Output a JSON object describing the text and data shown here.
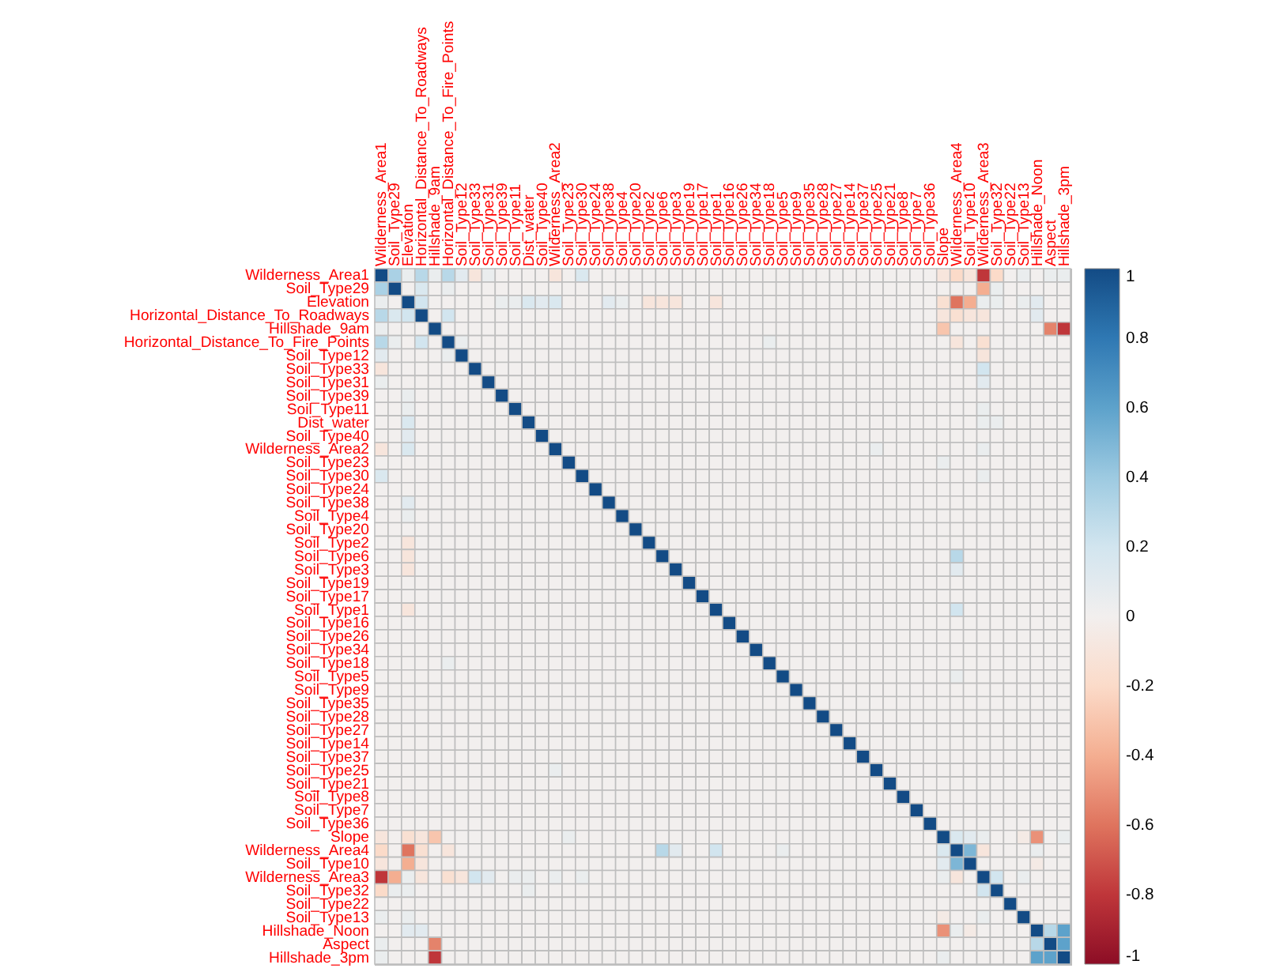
{
  "chart_data": {
    "type": "heatmap",
    "categories": [
      "Wilderness_Area1",
      "Soil_Type29",
      "Elevation",
      "Horizontal_Distance_To_Roadways",
      "Hillshade_9am",
      "Horizontal_Distance_To_Fire_Points",
      "Soil_Type12",
      "Soil_Type33",
      "Soil_Type31",
      "Soil_Type39",
      "Soil_Type11",
      "Dist_water",
      "Soil_Type40",
      "Wilderness_Area2",
      "Soil_Type23",
      "Soil_Type30",
      "Soil_Type24",
      "Soil_Type38",
      "Soil_Type4",
      "Soil_Type20",
      "Soil_Type2",
      "Soil_Type6",
      "Soil_Type3",
      "Soil_Type19",
      "Soil_Type17",
      "Soil_Type1",
      "Soil_Type16",
      "Soil_Type26",
      "Soil_Type34",
      "Soil_Type18",
      "Soil_Type5",
      "Soil_Type9",
      "Soil_Type35",
      "Soil_Type28",
      "Soil_Type27",
      "Soil_Type14",
      "Soil_Type37",
      "Soil_Type25",
      "Soil_Type21",
      "Soil_Type8",
      "Soil_Type7",
      "Soil_Type36",
      "Slope",
      "Wilderness_Area4",
      "Soil_Type10",
      "Wilderness_Area3",
      "Soil_Type32",
      "Soil_Type22",
      "Soil_Type13",
      "Hillshade_Noon",
      "Aspect",
      "Hillshade_3pm"
    ],
    "y_categories": [
      "Wilderness_Area1",
      "Soil_Type29",
      "Elevation",
      "Horizontal_Distance_To_Roadways",
      "Hillshade_9am",
      "Horizontal_Distance_To_Fire_Points",
      "Soil_Type12",
      "Soil_Type33",
      "Soil_Type31",
      "Soil_Type39",
      "Soil_Type11",
      "Dist_water",
      "Soil_Type40",
      "Wilderness_Area2",
      "Soil_Type23",
      "Soil_Type30",
      "Soil_Type24",
      "Soil_Type38",
      "Soil_Type4",
      "Soil_Type20",
      "Soil_Type2",
      "Soil_Type6",
      "Soil_Type3",
      "Soil_Type19",
      "Soil_Type17",
      "Soil_Type1",
      "Soil_Type16",
      "Soil_Type26",
      "Soil_Type34",
      "Soil_Type18",
      "Soil_Type5",
      "Soil_Type9",
      "Soil_Type35",
      "Soil_Type28",
      "Soil_Type27",
      "Soil_Type14",
      "Soil_Type37",
      "Soil_Type25",
      "Soil_Type21",
      "Soil_Type8",
      "Soil_Type7",
      "Soil_Type36",
      "Slope",
      "Wilderness_Area4",
      "Soil_Type10",
      "Wilderness_Area3",
      "Soil_Type32",
      "Soil_Type22",
      "Soil_Type13",
      "Hillshade_Noon",
      "Aspect",
      "Hillshade_3pm"
    ],
    "cells": [
      [
        1,
        0.35,
        0.05,
        0.3,
        0.05,
        0.3,
        0.1,
        -0.1,
        0.05,
        0,
        0,
        0,
        0,
        -0.1,
        0,
        0.15,
        0,
        0,
        0,
        0,
        0,
        0,
        0,
        0,
        0,
        0,
        0,
        0,
        0,
        0,
        0,
        0,
        0,
        0,
        0,
        0,
        0,
        0,
        0,
        0,
        0,
        0,
        -0.1,
        -0.2,
        -0.1,
        -0.8,
        -0.2,
        0,
        0.05,
        0,
        0.05,
        0.05
      ],
      [
        0.35,
        1,
        0,
        0.15,
        0,
        0.05,
        0,
        0,
        0,
        0,
        0,
        0,
        0,
        0,
        0,
        0,
        0,
        0,
        0,
        0,
        0,
        0,
        0,
        0,
        0,
        0,
        0,
        0,
        0,
        0,
        0,
        0,
        0,
        0,
        0,
        0,
        0,
        0,
        0,
        0,
        0,
        0,
        0,
        0,
        0,
        -0.4,
        0.05,
        0,
        0,
        0,
        0,
        0
      ],
      [
        0.05,
        0,
        1,
        0.2,
        0,
        0,
        0,
        0,
        0,
        0.05,
        0.05,
        0.15,
        0.1,
        0.15,
        0,
        0,
        0,
        0.1,
        0.05,
        0,
        -0.1,
        -0.1,
        -0.1,
        0,
        0,
        -0.1,
        0,
        0,
        0,
        0,
        0,
        0,
        0,
        0,
        0,
        0,
        0,
        0,
        0,
        0,
        0,
        0,
        -0.15,
        -0.6,
        -0.4,
        0.05,
        0.05,
        0,
        0.05,
        0.1,
        0,
        0
      ],
      [
        0.3,
        0.15,
        0.2,
        1,
        0,
        0.2,
        0,
        0,
        0,
        0,
        0,
        0,
        0,
        0,
        0,
        0,
        0,
        0,
        0,
        0,
        0,
        0,
        0,
        0,
        0,
        0,
        0,
        0,
        0,
        0,
        0,
        0,
        0,
        0,
        0,
        0,
        0,
        0,
        0,
        0,
        0,
        0,
        -0.1,
        -0.15,
        -0.1,
        -0.1,
        0,
        0,
        0,
        0.1,
        0,
        0
      ],
      [
        0.05,
        0,
        0,
        0,
        1,
        0,
        0,
        0,
        0,
        0,
        0,
        0,
        0,
        0,
        0,
        0,
        0,
        0,
        0,
        0,
        0,
        0,
        0,
        0,
        0,
        0,
        0,
        0,
        0,
        0,
        0,
        0,
        0,
        0,
        0,
        0,
        0,
        0,
        0,
        0,
        0,
        0,
        -0.3,
        0,
        0,
        0,
        0,
        0,
        0,
        0,
        -0.55,
        -0.8
      ],
      [
        0.3,
        0.05,
        0,
        0.2,
        0,
        1,
        0.05,
        0,
        0,
        0,
        0,
        0,
        0,
        0,
        0,
        0,
        0,
        0,
        0,
        0,
        0,
        0,
        0,
        0,
        0,
        0,
        0,
        0,
        0,
        0.05,
        0,
        0,
        0,
        0,
        0,
        0,
        0,
        0,
        0,
        0,
        0,
        0,
        0,
        -0.1,
        0,
        -0.15,
        0,
        0,
        0,
        0,
        0,
        0
      ],
      [
        0.1,
        0,
        0,
        0,
        0,
        0.05,
        1,
        0,
        0,
        0,
        0,
        0,
        0,
        0,
        0,
        0,
        0,
        0,
        0,
        0,
        0,
        0,
        0,
        0,
        0,
        0,
        0,
        0,
        0,
        0,
        0,
        0,
        0,
        0,
        0,
        0,
        0,
        0,
        0,
        0,
        0,
        0,
        0,
        0,
        0,
        -0.1,
        0,
        0,
        0,
        0,
        0,
        0
      ],
      [
        -0.1,
        0,
        0,
        0,
        0,
        0,
        0,
        1,
        0,
        0,
        0,
        0,
        0,
        0,
        0,
        0,
        0,
        0,
        0,
        0,
        0,
        0,
        0,
        0,
        0,
        0,
        0,
        0,
        0,
        0,
        0,
        0,
        0,
        0,
        0,
        0,
        0,
        0,
        0,
        0,
        0,
        0,
        0,
        0,
        0,
        0.2,
        0,
        0,
        0,
        0,
        0,
        0
      ],
      [
        0.05,
        0,
        0,
        0,
        0,
        0,
        0,
        0,
        1,
        0,
        0,
        0,
        0,
        0,
        0,
        0,
        0,
        0,
        0,
        0,
        0,
        0,
        0,
        0,
        0,
        0,
        0,
        0,
        0,
        0,
        0,
        0,
        0,
        0,
        0,
        0,
        0,
        0,
        0,
        0,
        0,
        0,
        0,
        0,
        0,
        0.1,
        0,
        0,
        0,
        0,
        0,
        0
      ],
      [
        0,
        0,
        0.05,
        0,
        0,
        0,
        0,
        0,
        0,
        1,
        0,
        0,
        0,
        0,
        0,
        0,
        0,
        0,
        0,
        0,
        0,
        0,
        0,
        0,
        0,
        0,
        0,
        0,
        0,
        0,
        0,
        0,
        0,
        0,
        0,
        0,
        0,
        0,
        0,
        0,
        0,
        0,
        0,
        0,
        0,
        0,
        0,
        0,
        0,
        0,
        0,
        0
      ],
      [
        0,
        0,
        0.05,
        0,
        0,
        0,
        0,
        0,
        0,
        0,
        1,
        0,
        0,
        0,
        0,
        0,
        0,
        0,
        0,
        0,
        0,
        0,
        0,
        0,
        0,
        0,
        0,
        0,
        0,
        0,
        0,
        0,
        0,
        0,
        0,
        0,
        0,
        0,
        0,
        0,
        0,
        0,
        0,
        0,
        0,
        0.05,
        0,
        0,
        0,
        0,
        0,
        0
      ],
      [
        0,
        0,
        0.15,
        0,
        0,
        0,
        0,
        0,
        0,
        0,
        0,
        1,
        0,
        0,
        0,
        0,
        0,
        0,
        0,
        0,
        0,
        0,
        0,
        0,
        0,
        0,
        0,
        0,
        0,
        0,
        0,
        0,
        0,
        0,
        0,
        0,
        0,
        0,
        0,
        0,
        0,
        0,
        0,
        0,
        0,
        0.05,
        0.05,
        0,
        0,
        0,
        0,
        0
      ],
      [
        0,
        0,
        0.1,
        0,
        0,
        0,
        0,
        0,
        0,
        0,
        0,
        0,
        1,
        0,
        0,
        0,
        0,
        0,
        0,
        0,
        0,
        0,
        0,
        0,
        0,
        0,
        0,
        0,
        0,
        0,
        0,
        0,
        0,
        0,
        0,
        0,
        0,
        0,
        0,
        0,
        0,
        0,
        0,
        0,
        0,
        0,
        0,
        0,
        0,
        0,
        0,
        0
      ],
      [
        -0.1,
        0,
        0.15,
        0,
        0,
        0,
        0,
        0,
        0,
        0,
        0,
        0,
        0,
        1,
        0,
        0,
        0,
        0,
        0,
        0,
        0,
        0,
        0,
        0,
        0,
        0,
        0,
        0,
        0,
        0,
        0,
        0,
        0,
        0,
        0,
        0,
        0,
        0.05,
        0,
        0,
        0,
        0,
        0,
        0,
        0,
        0.05,
        0,
        0,
        0,
        0,
        0,
        0
      ],
      [
        0,
        0,
        0,
        0,
        0,
        0,
        0,
        0,
        0,
        0,
        0,
        0,
        0,
        0,
        1,
        0,
        0,
        0,
        0,
        0,
        0,
        0,
        0,
        0,
        0,
        0,
        0,
        0,
        0,
        0,
        0,
        0,
        0,
        0,
        0,
        0,
        0,
        0,
        0,
        0,
        0,
        0,
        0.05,
        0,
        0,
        0,
        0,
        0,
        0,
        0,
        0,
        0
      ],
      [
        0.15,
        0,
        0,
        0,
        0,
        0,
        0,
        0,
        0,
        0,
        0,
        0,
        0,
        0,
        0,
        1,
        0,
        0,
        0,
        0,
        0,
        0,
        0,
        0,
        0,
        0,
        0,
        0,
        0,
        0,
        0,
        0,
        0,
        0,
        0,
        0,
        0,
        0,
        0,
        0,
        0,
        0,
        0,
        0,
        0,
        0.05,
        0,
        0,
        0,
        0,
        0,
        0
      ],
      [
        0,
        0,
        0,
        0,
        0,
        0,
        0,
        0,
        0,
        0,
        0,
        0,
        0,
        0,
        0,
        0,
        1,
        0,
        0,
        0,
        0,
        0,
        0,
        0,
        0,
        0,
        0,
        0,
        0,
        0,
        0,
        0,
        0,
        0,
        0,
        0,
        0,
        0,
        0,
        0,
        0,
        0,
        0,
        0,
        0,
        0,
        0,
        0,
        0,
        0,
        0,
        0
      ],
      [
        0,
        0,
        0.1,
        0,
        0,
        0,
        0,
        0,
        0,
        0,
        0,
        0,
        0,
        0,
        0,
        0,
        0,
        1,
        0,
        0,
        0,
        0,
        0,
        0,
        0,
        0,
        0,
        0,
        0,
        0,
        0,
        0,
        0,
        0,
        0,
        0,
        0,
        0,
        0,
        0,
        0,
        0,
        0,
        0,
        0,
        0,
        0,
        0,
        0,
        0,
        0,
        0
      ],
      [
        0,
        0,
        0.05,
        0,
        0,
        0,
        0,
        0,
        0,
        0,
        0,
        0,
        0,
        0,
        0,
        0,
        0,
        0,
        1,
        0,
        0,
        0,
        0,
        0,
        0,
        0,
        0,
        0,
        0,
        0,
        0,
        0,
        0,
        0,
        0,
        0,
        0,
        0,
        0,
        0,
        0,
        0,
        0,
        0,
        0,
        0,
        0,
        0,
        0,
        0,
        0,
        0
      ],
      [
        0,
        0,
        0,
        0,
        0,
        0,
        0,
        0,
        0,
        0,
        0,
        0,
        0,
        0,
        0,
        0,
        0,
        0,
        0,
        1,
        0,
        0,
        0,
        0,
        0,
        0,
        0,
        0,
        0,
        0,
        0,
        0,
        0,
        0,
        0,
        0,
        0,
        0,
        0,
        0,
        0,
        0,
        0,
        0,
        0,
        0,
        0,
        0,
        0,
        0,
        0,
        0
      ],
      [
        0,
        0,
        -0.1,
        0,
        0,
        0,
        0,
        0,
        0,
        0,
        0,
        0,
        0,
        0,
        0,
        0,
        0,
        0,
        0,
        0,
        1,
        0,
        0,
        0,
        0,
        0,
        0,
        0,
        0,
        0,
        0,
        0,
        0,
        0,
        0,
        0,
        0,
        0,
        0,
        0,
        0,
        0,
        0,
        0,
        0,
        0,
        0,
        0,
        0,
        0,
        0,
        0
      ],
      [
        0,
        0,
        -0.1,
        0,
        0,
        0,
        0,
        0,
        0,
        0,
        0,
        0,
        0,
        0,
        0,
        0,
        0,
        0,
        0,
        0,
        0,
        1,
        0,
        0,
        0,
        0,
        0,
        0,
        0,
        0,
        0,
        0,
        0,
        0,
        0,
        0,
        0,
        0,
        0,
        0,
        0,
        0,
        0,
        0.3,
        0,
        0,
        0,
        0,
        0,
        0,
        0,
        0
      ],
      [
        0,
        0,
        -0.1,
        0,
        0,
        0,
        0,
        0,
        0,
        0,
        0,
        0,
        0,
        0,
        0,
        0,
        0,
        0,
        0,
        0,
        0,
        0,
        1,
        0,
        0,
        0,
        0,
        0,
        0,
        0,
        0,
        0,
        0,
        0,
        0,
        0,
        0,
        0,
        0,
        0,
        0,
        0,
        0,
        0.1,
        0,
        0,
        0,
        0,
        0,
        0,
        0,
        0
      ],
      [
        0,
        0,
        0,
        0,
        0,
        0,
        0,
        0,
        0,
        0,
        0,
        0,
        0,
        0,
        0,
        0,
        0,
        0,
        0,
        0,
        0,
        0,
        0,
        1,
        0,
        0,
        0,
        0,
        0,
        0,
        0,
        0,
        0,
        0,
        0,
        0,
        0,
        0,
        0,
        0,
        0,
        0,
        0,
        0,
        0,
        0,
        0,
        0,
        0,
        0,
        0,
        0
      ],
      [
        0,
        0,
        0,
        0,
        0,
        0,
        0,
        0,
        0,
        0,
        0,
        0,
        0,
        0,
        0,
        0,
        0,
        0,
        0,
        0,
        0,
        0,
        0,
        0,
        1,
        0,
        0,
        0,
        0,
        0,
        0,
        0,
        0,
        0,
        0,
        0,
        0,
        0,
        0,
        0,
        0,
        0,
        0,
        0,
        0,
        0,
        0,
        0,
        0,
        0,
        0,
        0
      ],
      [
        0,
        0,
        -0.1,
        0,
        0,
        0,
        0,
        0,
        0,
        0,
        0,
        0,
        0,
        0,
        0,
        0,
        0,
        0,
        0,
        0,
        0,
        0,
        0,
        0,
        0,
        1,
        0,
        0,
        0,
        0,
        0,
        0,
        0,
        0,
        0,
        0,
        0,
        0,
        0,
        0,
        0,
        0,
        0,
        0.2,
        0,
        0,
        0,
        0,
        0,
        0,
        0,
        0
      ],
      [
        0,
        0,
        0,
        0,
        0,
        0,
        0,
        0,
        0,
        0,
        0,
        0,
        0,
        0,
        0,
        0,
        0,
        0,
        0,
        0,
        0,
        0,
        0,
        0,
        0,
        0,
        1,
        0,
        0,
        0,
        0,
        0,
        0,
        0,
        0,
        0,
        0,
        0,
        0,
        0,
        0,
        0,
        0,
        0,
        0,
        0,
        0,
        0,
        0,
        0,
        0,
        0
      ],
      [
        0,
        0,
        0,
        0,
        0,
        0,
        0,
        0,
        0,
        0,
        0,
        0,
        0,
        0,
        0,
        0,
        0,
        0,
        0,
        0,
        0,
        0,
        0,
        0,
        0,
        0,
        0,
        1,
        0,
        0,
        0,
        0,
        0,
        0,
        0,
        0,
        0,
        0,
        0,
        0,
        0,
        0,
        0,
        0,
        0,
        0,
        0,
        0,
        0,
        0,
        0,
        0
      ],
      [
        0,
        0,
        0,
        0,
        0,
        0,
        0,
        0,
        0,
        0,
        0,
        0,
        0,
        0,
        0,
        0,
        0,
        0,
        0,
        0,
        0,
        0,
        0,
        0,
        0,
        0,
        0,
        0,
        1,
        0,
        0,
        0,
        0,
        0,
        0,
        0,
        0,
        0,
        0,
        0,
        0,
        0,
        0,
        0,
        0,
        0,
        0,
        0,
        0,
        0,
        0,
        0
      ],
      [
        0,
        0,
        0,
        0,
        0,
        0.05,
        0,
        0,
        0,
        0,
        0,
        0,
        0,
        0,
        0,
        0,
        0,
        0,
        0,
        0,
        0,
        0,
        0,
        0,
        0,
        0,
        0,
        0,
        0,
        1,
        0,
        0,
        0,
        0,
        0,
        0,
        0,
        0,
        0,
        0,
        0,
        0,
        0,
        0,
        0,
        0,
        0,
        0,
        0,
        0,
        0,
        0
      ],
      [
        0,
        0,
        0,
        0,
        0,
        0,
        0,
        0,
        0,
        0,
        0,
        0,
        0,
        0,
        0,
        0,
        0,
        0,
        0,
        0,
        0,
        0,
        0,
        0,
        0,
        0,
        0,
        0,
        0,
        0,
        1,
        0,
        0,
        0,
        0,
        0,
        0,
        0,
        0,
        0,
        0,
        0,
        0,
        0.05,
        0,
        0,
        0,
        0,
        0,
        0,
        0,
        0
      ],
      [
        0,
        0,
        0,
        0,
        0,
        0,
        0,
        0,
        0,
        0,
        0,
        0,
        0,
        0,
        0,
        0,
        0,
        0,
        0,
        0,
        0,
        0,
        0,
        0,
        0,
        0,
        0,
        0,
        0,
        0,
        0,
        1,
        0,
        0,
        0,
        0,
        0,
        0,
        0,
        0,
        0,
        0,
        0,
        0,
        0,
        0,
        0,
        0,
        0,
        0,
        0,
        0
      ],
      [
        0,
        0,
        0,
        0,
        0,
        0,
        0,
        0,
        0,
        0,
        0,
        0,
        0,
        0,
        0,
        0,
        0,
        0,
        0,
        0,
        0,
        0,
        0,
        0,
        0,
        0,
        0,
        0,
        0,
        0,
        0,
        0,
        1,
        0,
        0,
        0,
        0,
        0,
        0,
        0,
        0,
        0,
        0,
        0,
        0,
        0,
        0,
        0,
        0,
        0,
        0,
        0
      ],
      [
        0,
        0,
        0,
        0,
        0,
        0,
        0,
        0,
        0,
        0,
        0,
        0,
        0,
        0,
        0,
        0,
        0,
        0,
        0,
        0,
        0,
        0,
        0,
        0,
        0,
        0,
        0,
        0,
        0,
        0,
        0,
        0,
        0,
        1,
        0,
        0,
        0,
        0,
        0,
        0,
        0,
        0,
        0,
        0,
        0,
        0,
        0,
        0,
        0,
        0,
        0,
        0
      ],
      [
        0,
        0,
        0,
        0,
        0,
        0,
        0,
        0,
        0,
        0,
        0,
        0,
        0,
        0,
        0,
        0,
        0,
        0,
        0,
        0,
        0,
        0,
        0,
        0,
        0,
        0,
        0,
        0,
        0,
        0,
        0,
        0,
        0,
        0,
        1,
        0,
        0,
        0,
        0,
        0,
        0,
        0,
        0,
        0,
        0,
        0,
        0,
        0,
        0,
        0,
        0,
        0
      ],
      [
        0,
        0,
        0,
        0,
        0,
        0,
        0,
        0,
        0,
        0,
        0,
        0,
        0,
        0,
        0,
        0,
        0,
        0,
        0,
        0,
        0,
        0,
        0,
        0,
        0,
        0,
        0,
        0,
        0,
        0,
        0,
        0,
        0,
        0,
        0,
        1,
        0,
        0,
        0,
        0,
        0,
        0,
        0,
        0,
        0,
        0,
        0,
        0,
        0,
        0,
        0,
        0
      ],
      [
        0,
        0,
        0,
        0,
        0,
        0,
        0,
        0,
        0,
        0,
        0,
        0,
        0,
        0,
        0,
        0,
        0,
        0,
        0,
        0,
        0,
        0,
        0,
        0,
        0,
        0,
        0,
        0,
        0,
        0,
        0,
        0,
        0,
        0,
        0,
        0,
        1,
        0,
        0,
        0,
        0,
        0,
        0,
        0,
        0,
        0,
        0,
        0,
        0,
        0,
        0,
        0
      ],
      [
        0,
        0,
        0,
        0,
        0,
        0,
        0,
        0,
        0,
        0,
        0,
        0,
        0,
        0.05,
        0,
        0,
        0,
        0,
        0,
        0,
        0,
        0,
        0,
        0,
        0,
        0,
        0,
        0,
        0,
        0,
        0,
        0,
        0,
        0,
        0,
        0,
        0,
        1,
        0,
        0,
        0,
        0,
        0,
        0,
        0,
        0,
        0,
        0,
        0,
        0,
        0,
        0
      ],
      [
        0,
        0,
        0,
        0,
        0,
        0,
        0,
        0,
        0,
        0,
        0,
        0,
        0,
        0,
        0,
        0,
        0,
        0,
        0,
        0,
        0,
        0,
        0,
        0,
        0,
        0,
        0,
        0,
        0,
        0,
        0,
        0,
        0,
        0,
        0,
        0,
        0,
        0,
        1,
        0,
        0,
        0,
        0,
        0,
        0,
        0,
        0,
        0,
        0,
        0,
        0,
        0
      ],
      [
        0,
        0,
        0,
        0,
        0,
        0,
        0,
        0,
        0,
        0,
        0,
        0,
        0,
        0,
        0,
        0,
        0,
        0,
        0,
        0,
        0,
        0,
        0,
        0,
        0,
        0,
        0,
        0,
        0,
        0,
        0,
        0,
        0,
        0,
        0,
        0,
        0,
        0,
        0,
        1,
        0,
        0,
        0,
        0,
        0,
        0,
        0,
        0,
        0,
        0,
        0,
        0
      ],
      [
        0,
        0,
        0,
        0,
        0,
        0,
        0,
        0,
        0,
        0,
        0,
        0,
        0,
        0,
        0,
        0,
        0,
        0,
        0,
        0,
        0,
        0,
        0,
        0,
        0,
        0,
        0,
        0,
        0,
        0,
        0,
        0,
        0,
        0,
        0,
        0,
        0,
        0,
        0,
        0,
        1,
        0,
        0,
        0,
        0,
        0,
        0,
        0,
        0,
        0,
        0,
        0
      ],
      [
        0,
        0,
        0,
        0,
        0,
        0,
        0,
        0,
        0,
        0,
        0,
        0,
        0,
        0,
        0,
        0,
        0,
        0,
        0,
        0,
        0,
        0,
        0,
        0,
        0,
        0,
        0,
        0,
        0,
        0,
        0,
        0,
        0,
        0,
        0,
        0,
        0,
        0,
        0,
        0,
        0,
        1,
        0,
        0,
        0,
        0,
        0,
        0,
        0,
        0,
        0,
        0
      ],
      [
        -0.1,
        0,
        -0.15,
        -0.1,
        -0.3,
        0,
        0,
        0,
        0,
        0,
        0,
        0,
        0,
        0,
        0.05,
        0,
        0,
        0,
        0,
        0,
        0,
        0,
        0,
        0,
        0,
        0,
        0,
        0,
        0,
        0,
        0,
        0,
        0,
        0,
        0,
        0,
        0,
        0,
        0,
        0,
        0,
        0,
        1,
        0.15,
        0.1,
        0.05,
        0,
        0,
        -0.05,
        -0.5,
        0,
        0.05
      ],
      [
        -0.2,
        0,
        -0.6,
        -0.15,
        0,
        -0.1,
        0,
        0,
        0,
        0,
        0,
        0,
        0,
        0,
        0,
        0,
        0,
        0,
        0,
        0,
        0,
        0.3,
        0.1,
        0,
        0,
        0.2,
        0,
        0,
        0,
        0,
        0.05,
        0,
        0,
        0,
        0,
        0,
        0,
        0,
        0,
        0,
        0,
        0,
        0.15,
        1,
        0.5,
        -0.1,
        0,
        0,
        0,
        0.05,
        0,
        0
      ],
      [
        -0.1,
        0,
        -0.4,
        -0.1,
        0,
        0,
        0,
        0,
        0,
        0,
        0,
        0,
        0,
        0,
        0,
        0,
        0,
        0,
        0,
        0,
        0,
        0,
        0,
        0,
        0,
        0,
        0,
        0,
        0,
        0,
        0,
        0,
        0,
        0,
        0,
        0,
        0,
        0,
        0,
        0,
        0,
        0,
        0.1,
        0.5,
        1,
        0,
        0,
        0,
        0,
        -0.05,
        0,
        0
      ],
      [
        -0.8,
        -0.4,
        0.05,
        -0.1,
        0,
        -0.15,
        -0.1,
        0.2,
        0.1,
        0,
        0.05,
        0.05,
        0,
        0.05,
        0,
        0.05,
        0,
        0,
        0,
        0,
        0,
        0,
        0,
        0,
        0,
        0,
        0,
        0,
        0,
        0,
        0,
        0,
        0,
        0,
        0,
        0,
        0,
        0,
        0,
        0,
        0,
        0,
        0.05,
        -0.1,
        0,
        1,
        0.2,
        0,
        0.05,
        0,
        0,
        0
      ],
      [
        -0.2,
        0.05,
        0.05,
        0,
        0,
        0,
        0,
        0,
        0,
        0,
        0,
        0.05,
        0,
        0,
        0,
        0,
        0,
        0,
        0,
        0,
        0,
        0,
        0,
        0,
        0,
        0,
        0,
        0,
        0,
        0,
        0,
        0,
        0,
        0,
        0,
        0,
        0,
        0,
        0,
        0,
        0,
        0,
        0,
        0,
        0,
        0.2,
        1,
        0,
        0,
        0,
        0,
        0
      ],
      [
        0,
        0,
        0,
        0,
        0,
        0,
        0,
        0,
        0,
        0,
        0,
        0,
        0,
        0,
        0,
        0,
        0,
        0,
        0,
        0,
        0,
        0,
        0,
        0,
        0,
        0,
        0,
        0,
        0,
        0,
        0,
        0,
        0,
        0,
        0,
        0,
        0,
        0,
        0,
        0,
        0,
        0,
        0,
        0,
        0,
        0,
        0,
        1,
        0,
        0,
        0,
        0
      ],
      [
        0.05,
        0,
        0.05,
        0,
        0,
        0,
        0,
        0,
        0,
        0,
        0,
        0,
        0,
        0,
        0,
        0,
        0,
        0,
        0,
        0,
        0,
        0,
        0,
        0,
        0,
        0,
        0,
        0,
        0,
        0,
        0,
        0,
        0,
        0,
        0,
        0,
        0,
        0,
        0,
        0,
        0,
        0,
        -0.05,
        0,
        0,
        0.05,
        0,
        0,
        1,
        0,
        0,
        0
      ],
      [
        0,
        0,
        0.1,
        0.1,
        0,
        0,
        0,
        0,
        0,
        0,
        0,
        0,
        0,
        0,
        0,
        0,
        0,
        0,
        0,
        0,
        0,
        0,
        0,
        0,
        0,
        0,
        0,
        0,
        0,
        0,
        0,
        0,
        0,
        0,
        0,
        0,
        0,
        0,
        0,
        0,
        0,
        0,
        -0.5,
        0.05,
        -0.05,
        0,
        0,
        0,
        0,
        1,
        0.3,
        0.6
      ],
      [
        0.05,
        0,
        0,
        0,
        -0.55,
        0,
        0,
        0,
        0,
        0,
        0,
        0,
        0,
        0,
        0,
        0,
        0,
        0,
        0,
        0,
        0,
        0,
        0,
        0,
        0,
        0,
        0,
        0,
        0,
        0,
        0,
        0,
        0,
        0,
        0,
        0,
        0,
        0,
        0,
        0,
        0,
        0,
        0,
        0,
        0,
        0,
        0,
        0,
        0,
        0.3,
        1,
        0.6
      ],
      [
        0.05,
        0,
        0,
        0,
        -0.8,
        0,
        0,
        0,
        0,
        0,
        0,
        0,
        0,
        0,
        0,
        0,
        0,
        0,
        0,
        0,
        0,
        0,
        0,
        0,
        0,
        0,
        0,
        0,
        0,
        0,
        0,
        0,
        0,
        0,
        0,
        0,
        0,
        0,
        0,
        0,
        0,
        0,
        0.05,
        0,
        0,
        0,
        0,
        0,
        0,
        0.6,
        0.6,
        1
      ]
    ],
    "clim": [
      -1,
      1
    ],
    "cticks": [
      -1,
      -0.8,
      -0.6,
      -0.4,
      -0.2,
      0,
      0.2,
      0.4,
      0.6,
      0.8,
      1
    ]
  }
}
